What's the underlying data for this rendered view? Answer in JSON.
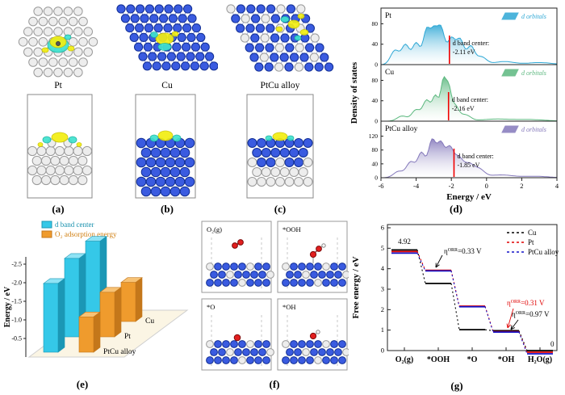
{
  "panels": {
    "a": {
      "caption": "(a)",
      "label": "Pt"
    },
    "b": {
      "caption": "(b)",
      "label": "Cu"
    },
    "c": {
      "caption": "(c)",
      "label": "PtCu alloy"
    },
    "d": {
      "caption": "(d)"
    },
    "e": {
      "caption": "(e)"
    },
    "f": {
      "caption": "(f)"
    },
    "g": {
      "caption": "(g)"
    }
  },
  "adsorption_labels": [
    "O₂(g)",
    "*OOH",
    "*O",
    "*OH"
  ],
  "chart_data": [
    {
      "id": "dos",
      "type": "area",
      "xlabel": "Energy / eV",
      "ylabel": "Density of states",
      "xlim": [
        -6,
        4
      ],
      "xticks": [
        "-6",
        "-4",
        "-2",
        "0",
        "2",
        "4"
      ],
      "legend_label": "d orbitals",
      "subplots": [
        {
          "name": "Pt",
          "color": "#2fa8d5",
          "yticks": [
            0,
            40,
            80
          ],
          "ymax": 95,
          "d_band_center": -2.11,
          "annotation_line1": "d band center:",
          "annotation_line2": "-2.11 eV",
          "peaks": [
            [
              -5.2,
              28,
              0.35
            ],
            [
              -4.6,
              38,
              0.3
            ],
            [
              -4.0,
              42,
              0.3
            ],
            [
              -3.4,
              68,
              0.28
            ],
            [
              -3.0,
              55,
              0.25
            ],
            [
              -2.6,
              72,
              0.3
            ],
            [
              -2.0,
              50,
              0.3
            ],
            [
              -1.5,
              48,
              0.3
            ],
            [
              -0.9,
              35,
              0.3
            ],
            [
              -0.3,
              15,
              0.4
            ],
            [
              1.0,
              6,
              0.8
            ],
            [
              3.0,
              4,
              1.0
            ]
          ]
        },
        {
          "name": "Cu",
          "color": "#5cb87f",
          "yticks": [
            0,
            40,
            80
          ],
          "ymax": 95,
          "d_band_center": -2.16,
          "annotation_line1": "d band center:",
          "annotation_line2": "-2.16 eV",
          "peaks": [
            [
              -4.8,
              10,
              0.4
            ],
            [
              -4.0,
              22,
              0.35
            ],
            [
              -3.4,
              40,
              0.3
            ],
            [
              -2.9,
              48,
              0.25
            ],
            [
              -2.45,
              78,
              0.22
            ],
            [
              -2.15,
              55,
              0.2
            ],
            [
              -1.8,
              30,
              0.3
            ],
            [
              -1.2,
              12,
              0.4
            ],
            [
              0.5,
              4,
              1.2
            ],
            [
              2.5,
              3,
              1.2
            ]
          ]
        },
        {
          "name": "PtCu alloy",
          "color": "#8478bb",
          "yticks": [
            0,
            40,
            80,
            120
          ],
          "ymax": 140,
          "d_band_center": -1.85,
          "annotation_line1": "d band center:",
          "annotation_line2": "-1.85 eV",
          "peaks": [
            [
              -5.0,
              18,
              0.4
            ],
            [
              -4.3,
              45,
              0.35
            ],
            [
              -3.7,
              70,
              0.3
            ],
            [
              -3.1,
              105,
              0.3
            ],
            [
              -2.6,
              95,
              0.3
            ],
            [
              -2.1,
              80,
              0.3
            ],
            [
              -1.6,
              55,
              0.35
            ],
            [
              -1.0,
              38,
              0.4
            ],
            [
              -0.4,
              22,
              0.4
            ],
            [
              0.8,
              8,
              1
            ],
            [
              2.8,
              4,
              1
            ]
          ]
        }
      ]
    },
    {
      "id": "bars3d",
      "type": "bar",
      "zlabel": "Energy / eV",
      "zticks": [
        "-2.5",
        "-2.0",
        "-1.5",
        "-1.0",
        "-0.5"
      ],
      "categories": [
        "Cu",
        "Pt",
        "PtCu alloy"
      ],
      "series": [
        {
          "name": "d band center",
          "color": "#35c8e8",
          "top": "#8fe3f5",
          "side": "#1b97b5",
          "values": [
            -2.16,
            -2.11,
            -1.85
          ]
        },
        {
          "name": "O₂ adsorption energy",
          "color": "#ef9b2d",
          "top": "#f7c275",
          "side": "#c4771a",
          "values": [
            -1.05,
            -1.2,
            -0.95
          ]
        }
      ]
    },
    {
      "id": "free_energy",
      "type": "line",
      "ylabel": "Free energy / eV",
      "ylim": [
        0,
        6
      ],
      "yticks": [
        0,
        1,
        2,
        3,
        4,
        5,
        6
      ],
      "categories": [
        "O₂(g)",
        "*OOH",
        "*O",
        "*OH",
        "H₂O(g)"
      ],
      "series": [
        {
          "name": "Cu",
          "color": "#000000",
          "values": [
            4.92,
            3.28,
            1.02,
            0.97,
            0
          ]
        },
        {
          "name": "Pt",
          "color": "#e00000",
          "values": [
            4.92,
            4.0,
            2.25,
            1.0,
            0
          ]
        },
        {
          "name": "PtCu alloy",
          "color": "#1414c8",
          "values": [
            4.92,
            4.05,
            2.3,
            1.06,
            0
          ]
        }
      ],
      "start_label": "4.92",
      "end_label": "0",
      "overpotentials": [
        {
          "pre": "η",
          "sup": "ORR",
          "rest": "=0.33 V",
          "color": "#000000"
        },
        {
          "pre": "η",
          "sup": "ORR",
          "rest": "=0.31 V",
          "color": "#e00000"
        },
        {
          "pre": "η",
          "sup": "ORR",
          "rest": "=0.97 V",
          "color": "#000000"
        }
      ]
    }
  ]
}
